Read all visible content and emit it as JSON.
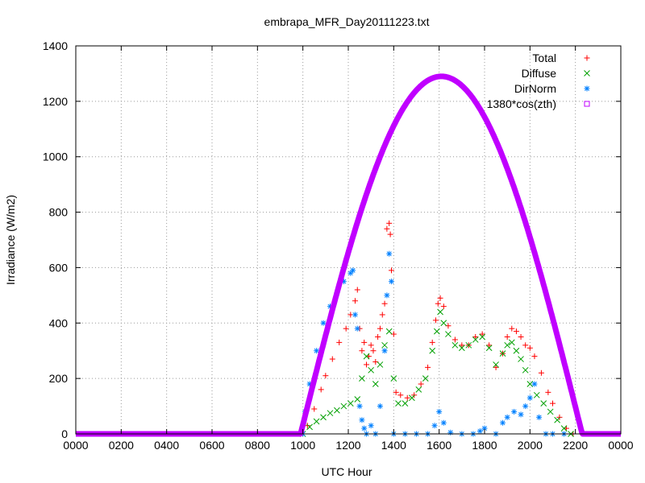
{
  "chart_data": {
    "type": "scatter",
    "title": "embrapa_MFR_Day20111223.txt",
    "xlabel": "UTC Hour",
    "ylabel": "Irradiance (W/m2)",
    "xlim": [
      0,
      24
    ],
    "ylim": [
      0,
      1400
    ],
    "x_ticks": [
      0,
      2,
      4,
      6,
      8,
      10,
      12,
      14,
      16,
      18,
      20,
      22,
      24
    ],
    "x_tick_labels": [
      "0000",
      "0200",
      "0400",
      "0600",
      "0800",
      "1000",
      "1200",
      "1400",
      "1600",
      "1800",
      "2000",
      "2200",
      "0000"
    ],
    "y_ticks": [
      0,
      200,
      400,
      600,
      800,
      1000,
      1200,
      1400
    ],
    "grid": true,
    "legend_position": "top-right",
    "series": [
      {
        "name": "Total",
        "color": "#ff0000",
        "marker": "plus",
        "points": [
          [
            10.0,
            0
          ],
          [
            10.2,
            30
          ],
          [
            10.5,
            90
          ],
          [
            10.8,
            160
          ],
          [
            11.0,
            210
          ],
          [
            11.3,
            270
          ],
          [
            11.6,
            330
          ],
          [
            11.9,
            380
          ],
          [
            12.1,
            430
          ],
          [
            12.3,
            480
          ],
          [
            12.4,
            520
          ],
          [
            12.5,
            380
          ],
          [
            12.6,
            300
          ],
          [
            12.7,
            330
          ],
          [
            12.8,
            250
          ],
          [
            12.9,
            280
          ],
          [
            13.0,
            320
          ],
          [
            13.1,
            300
          ],
          [
            13.2,
            260
          ],
          [
            13.3,
            350
          ],
          [
            13.4,
            380
          ],
          [
            13.5,
            430
          ],
          [
            13.6,
            470
          ],
          [
            13.7,
            740
          ],
          [
            13.8,
            760
          ],
          [
            13.85,
            720
          ],
          [
            13.9,
            590
          ],
          [
            14.0,
            360
          ],
          [
            14.1,
            150
          ],
          [
            14.3,
            140
          ],
          [
            14.6,
            130
          ],
          [
            14.9,
            140
          ],
          [
            15.2,
            180
          ],
          [
            15.5,
            240
          ],
          [
            15.7,
            330
          ],
          [
            15.85,
            410
          ],
          [
            15.95,
            470
          ],
          [
            16.05,
            490
          ],
          [
            16.2,
            460
          ],
          [
            16.4,
            390
          ],
          [
            16.7,
            340
          ],
          [
            17.0,
            320
          ],
          [
            17.3,
            320
          ],
          [
            17.6,
            350
          ],
          [
            17.9,
            360
          ],
          [
            18.2,
            320
          ],
          [
            18.5,
            240
          ],
          [
            18.8,
            290
          ],
          [
            19.0,
            350
          ],
          [
            19.2,
            380
          ],
          [
            19.4,
            370
          ],
          [
            19.6,
            350
          ],
          [
            19.8,
            320
          ],
          [
            20.0,
            310
          ],
          [
            20.2,
            280
          ],
          [
            20.5,
            220
          ],
          [
            20.8,
            150
          ],
          [
            21.0,
            110
          ],
          [
            21.3,
            60
          ],
          [
            21.6,
            20
          ],
          [
            21.9,
            0
          ]
        ]
      },
      {
        "name": "Diffuse",
        "color": "#00a000",
        "marker": "cross",
        "points": [
          [
            10.0,
            0
          ],
          [
            10.3,
            25
          ],
          [
            10.6,
            45
          ],
          [
            10.9,
            60
          ],
          [
            11.2,
            75
          ],
          [
            11.5,
            85
          ],
          [
            11.8,
            100
          ],
          [
            12.1,
            110
          ],
          [
            12.4,
            125
          ],
          [
            12.6,
            200
          ],
          [
            12.8,
            280
          ],
          [
            13.0,
            230
          ],
          [
            13.2,
            180
          ],
          [
            13.4,
            250
          ],
          [
            13.6,
            320
          ],
          [
            13.8,
            370
          ],
          [
            14.0,
            200
          ],
          [
            14.2,
            110
          ],
          [
            14.5,
            110
          ],
          [
            14.8,
            130
          ],
          [
            15.1,
            160
          ],
          [
            15.4,
            200
          ],
          [
            15.7,
            300
          ],
          [
            15.9,
            370
          ],
          [
            16.05,
            440
          ],
          [
            16.2,
            400
          ],
          [
            16.4,
            360
          ],
          [
            16.7,
            320
          ],
          [
            17.0,
            310
          ],
          [
            17.3,
            320
          ],
          [
            17.6,
            340
          ],
          [
            17.9,
            350
          ],
          [
            18.2,
            310
          ],
          [
            18.5,
            250
          ],
          [
            18.8,
            290
          ],
          [
            19.0,
            320
          ],
          [
            19.2,
            330
          ],
          [
            19.4,
            300
          ],
          [
            19.6,
            270
          ],
          [
            19.8,
            230
          ],
          [
            20.0,
            180
          ],
          [
            20.3,
            140
          ],
          [
            20.6,
            110
          ],
          [
            20.9,
            80
          ],
          [
            21.2,
            50
          ],
          [
            21.5,
            20
          ],
          [
            21.8,
            0
          ]
        ]
      },
      {
        "name": "DirNorm",
        "color": "#0080ff",
        "marker": "star",
        "points": [
          [
            10.0,
            0
          ],
          [
            10.1,
            80
          ],
          [
            10.3,
            180
          ],
          [
            10.6,
            300
          ],
          [
            10.9,
            400
          ],
          [
            11.2,
            460
          ],
          [
            11.5,
            510
          ],
          [
            11.8,
            550
          ],
          [
            12.1,
            580
          ],
          [
            12.2,
            590
          ],
          [
            12.3,
            430
          ],
          [
            12.4,
            380
          ],
          [
            12.5,
            100
          ],
          [
            12.6,
            50
          ],
          [
            12.7,
            20
          ],
          [
            12.8,
            0
          ],
          [
            13.0,
            30
          ],
          [
            13.2,
            0
          ],
          [
            13.4,
            100
          ],
          [
            13.6,
            300
          ],
          [
            13.7,
            500
          ],
          [
            13.8,
            650
          ],
          [
            13.9,
            550
          ],
          [
            14.0,
            0
          ],
          [
            14.5,
            0
          ],
          [
            15.0,
            0
          ],
          [
            15.5,
            0
          ],
          [
            15.8,
            30
          ],
          [
            16.0,
            80
          ],
          [
            16.2,
            40
          ],
          [
            16.5,
            5
          ],
          [
            17.0,
            0
          ],
          [
            17.5,
            0
          ],
          [
            17.8,
            10
          ],
          [
            18.0,
            20
          ],
          [
            18.5,
            0
          ],
          [
            18.8,
            40
          ],
          [
            19.0,
            60
          ],
          [
            19.3,
            80
          ],
          [
            19.6,
            70
          ],
          [
            19.8,
            100
          ],
          [
            20.0,
            130
          ],
          [
            20.2,
            180
          ],
          [
            20.4,
            60
          ],
          [
            20.7,
            0
          ],
          [
            21.0,
            0
          ],
          [
            21.5,
            0
          ]
        ]
      },
      {
        "name": "1380*cos(zth)",
        "color": "#c000ff",
        "marker": "square",
        "formula": "cosine_arc",
        "baseline": 0,
        "peak": 1290,
        "peak_x": 16.1,
        "start_x": 9.9,
        "end_x": 22.3
      }
    ]
  }
}
